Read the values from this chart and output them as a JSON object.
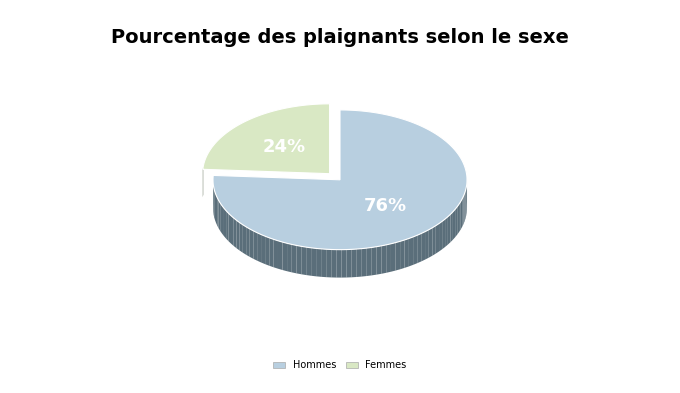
{
  "title": "Pourcentage des plaignants selon le sexe",
  "values": [
    76,
    24
  ],
  "labels": [
    "Hommes",
    "Femmes"
  ],
  "colors": [
    "#b8cfe0",
    "#d9e8c4"
  ],
  "shadow_colors": [
    "#5a6e7a",
    "#4a5a40"
  ],
  "pct_labels": [
    "76%",
    "24%"
  ],
  "pct_color": "white",
  "background_color": "#ffffff",
  "title_fontsize": 14,
  "pct_fontsize": 13,
  "legend_fontsize": 7,
  "startangle": 90,
  "explode_index": 1,
  "explode_amount": 0.12
}
